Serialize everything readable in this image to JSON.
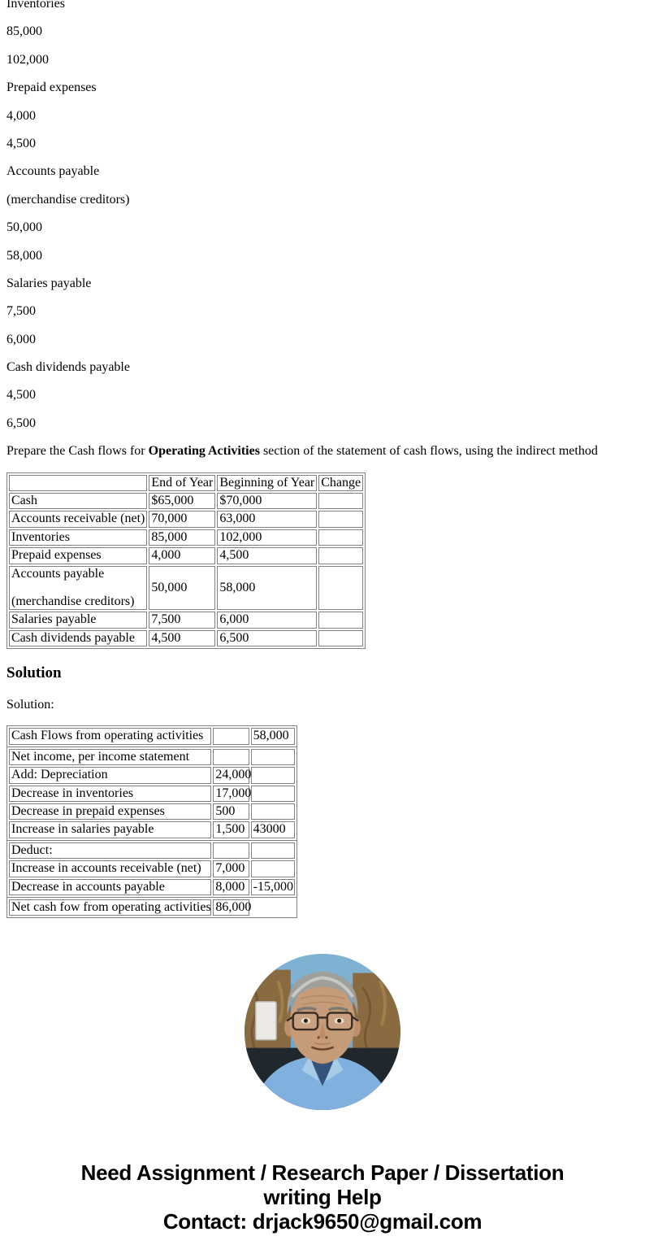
{
  "page": {
    "intro_lines": [
      "Inventories",
      "85,000",
      "102,000",
      "Prepaid expenses",
      "4,000",
      "4,500",
      "Accounts payable",
      "(merchandise creditors)",
      "50,000",
      "58,000",
      "Salaries payable",
      "7,500",
      "6,000",
      "Cash dividends payable",
      "4,500",
      "6,500"
    ],
    "prompt": {
      "prefix": "Prepare the Cash flows for ",
      "bold": "Operating Activities",
      "suffix": " section of the statement of cash flows, using the indirect method"
    },
    "solution_heading": "Solution",
    "solution_label": "Solution:"
  },
  "comparison_table": {
    "headers": [
      "",
      "End of Year",
      "Beginning of Year",
      "Change"
    ],
    "rows": [
      {
        "label": "Cash",
        "end": "$65,000",
        "begin": "$70,000",
        "change": ""
      },
      {
        "label": "Accounts receivable (net)",
        "end": "70,000",
        "begin": "63,000",
        "change": ""
      },
      {
        "label": "Inventories",
        "end": "85,000",
        "begin": "102,000",
        "change": ""
      },
      {
        "label": "Prepaid expenses",
        "end": "4,000",
        "begin": "4,500",
        "change": ""
      },
      {
        "label": "Accounts payable",
        "label2": "(merchandise creditors)",
        "end": "50,000",
        "begin": "58,000",
        "change": ""
      },
      {
        "label": "Salaries payable",
        "end": "7,500",
        "begin": "6,000",
        "change": ""
      },
      {
        "label": "Cash dividends payable",
        "end": "4,500",
        "begin": "6,500",
        "change": ""
      }
    ]
  },
  "solution_table": {
    "groups": [
      {
        "rows": [
          [
            "Cash Flows from operating activities",
            "",
            "58,000"
          ]
        ]
      },
      {
        "rows": [
          [
            "Net income, per income statement",
            "",
            ""
          ],
          [
            "Add: Depreciation",
            "24,000",
            ""
          ],
          [
            "Decrease in inventories",
            "17,000",
            ""
          ],
          [
            "Decrease in prepaid expenses",
            "500",
            ""
          ],
          [
            "Increase in salaries payable",
            "1,500",
            "43000"
          ]
        ]
      },
      {
        "rows": [
          [
            "Deduct:",
            "",
            ""
          ],
          [
            "Increase in accounts receivable (net)",
            "7,000",
            ""
          ],
          [
            "Decrease in accounts payable",
            "8,000",
            "-15,000"
          ]
        ]
      },
      {
        "rows": [
          [
            "Net cash fow from operating activities",
            "86,000"
          ]
        ]
      }
    ]
  },
  "avatar": {
    "description": "tutor-photo"
  },
  "footer": {
    "lines": [
      "Need Assignment / Research Paper / Dissertation",
      "writing Help",
      "Contact: drjack9650@gmail.com"
    ]
  },
  "colors": {
    "table_border": "#808080",
    "text": "#000000",
    "shirt_blue": "#7fb0de",
    "sky_blue": "#6ea7cb",
    "wood_brown": "#8a6b41"
  }
}
